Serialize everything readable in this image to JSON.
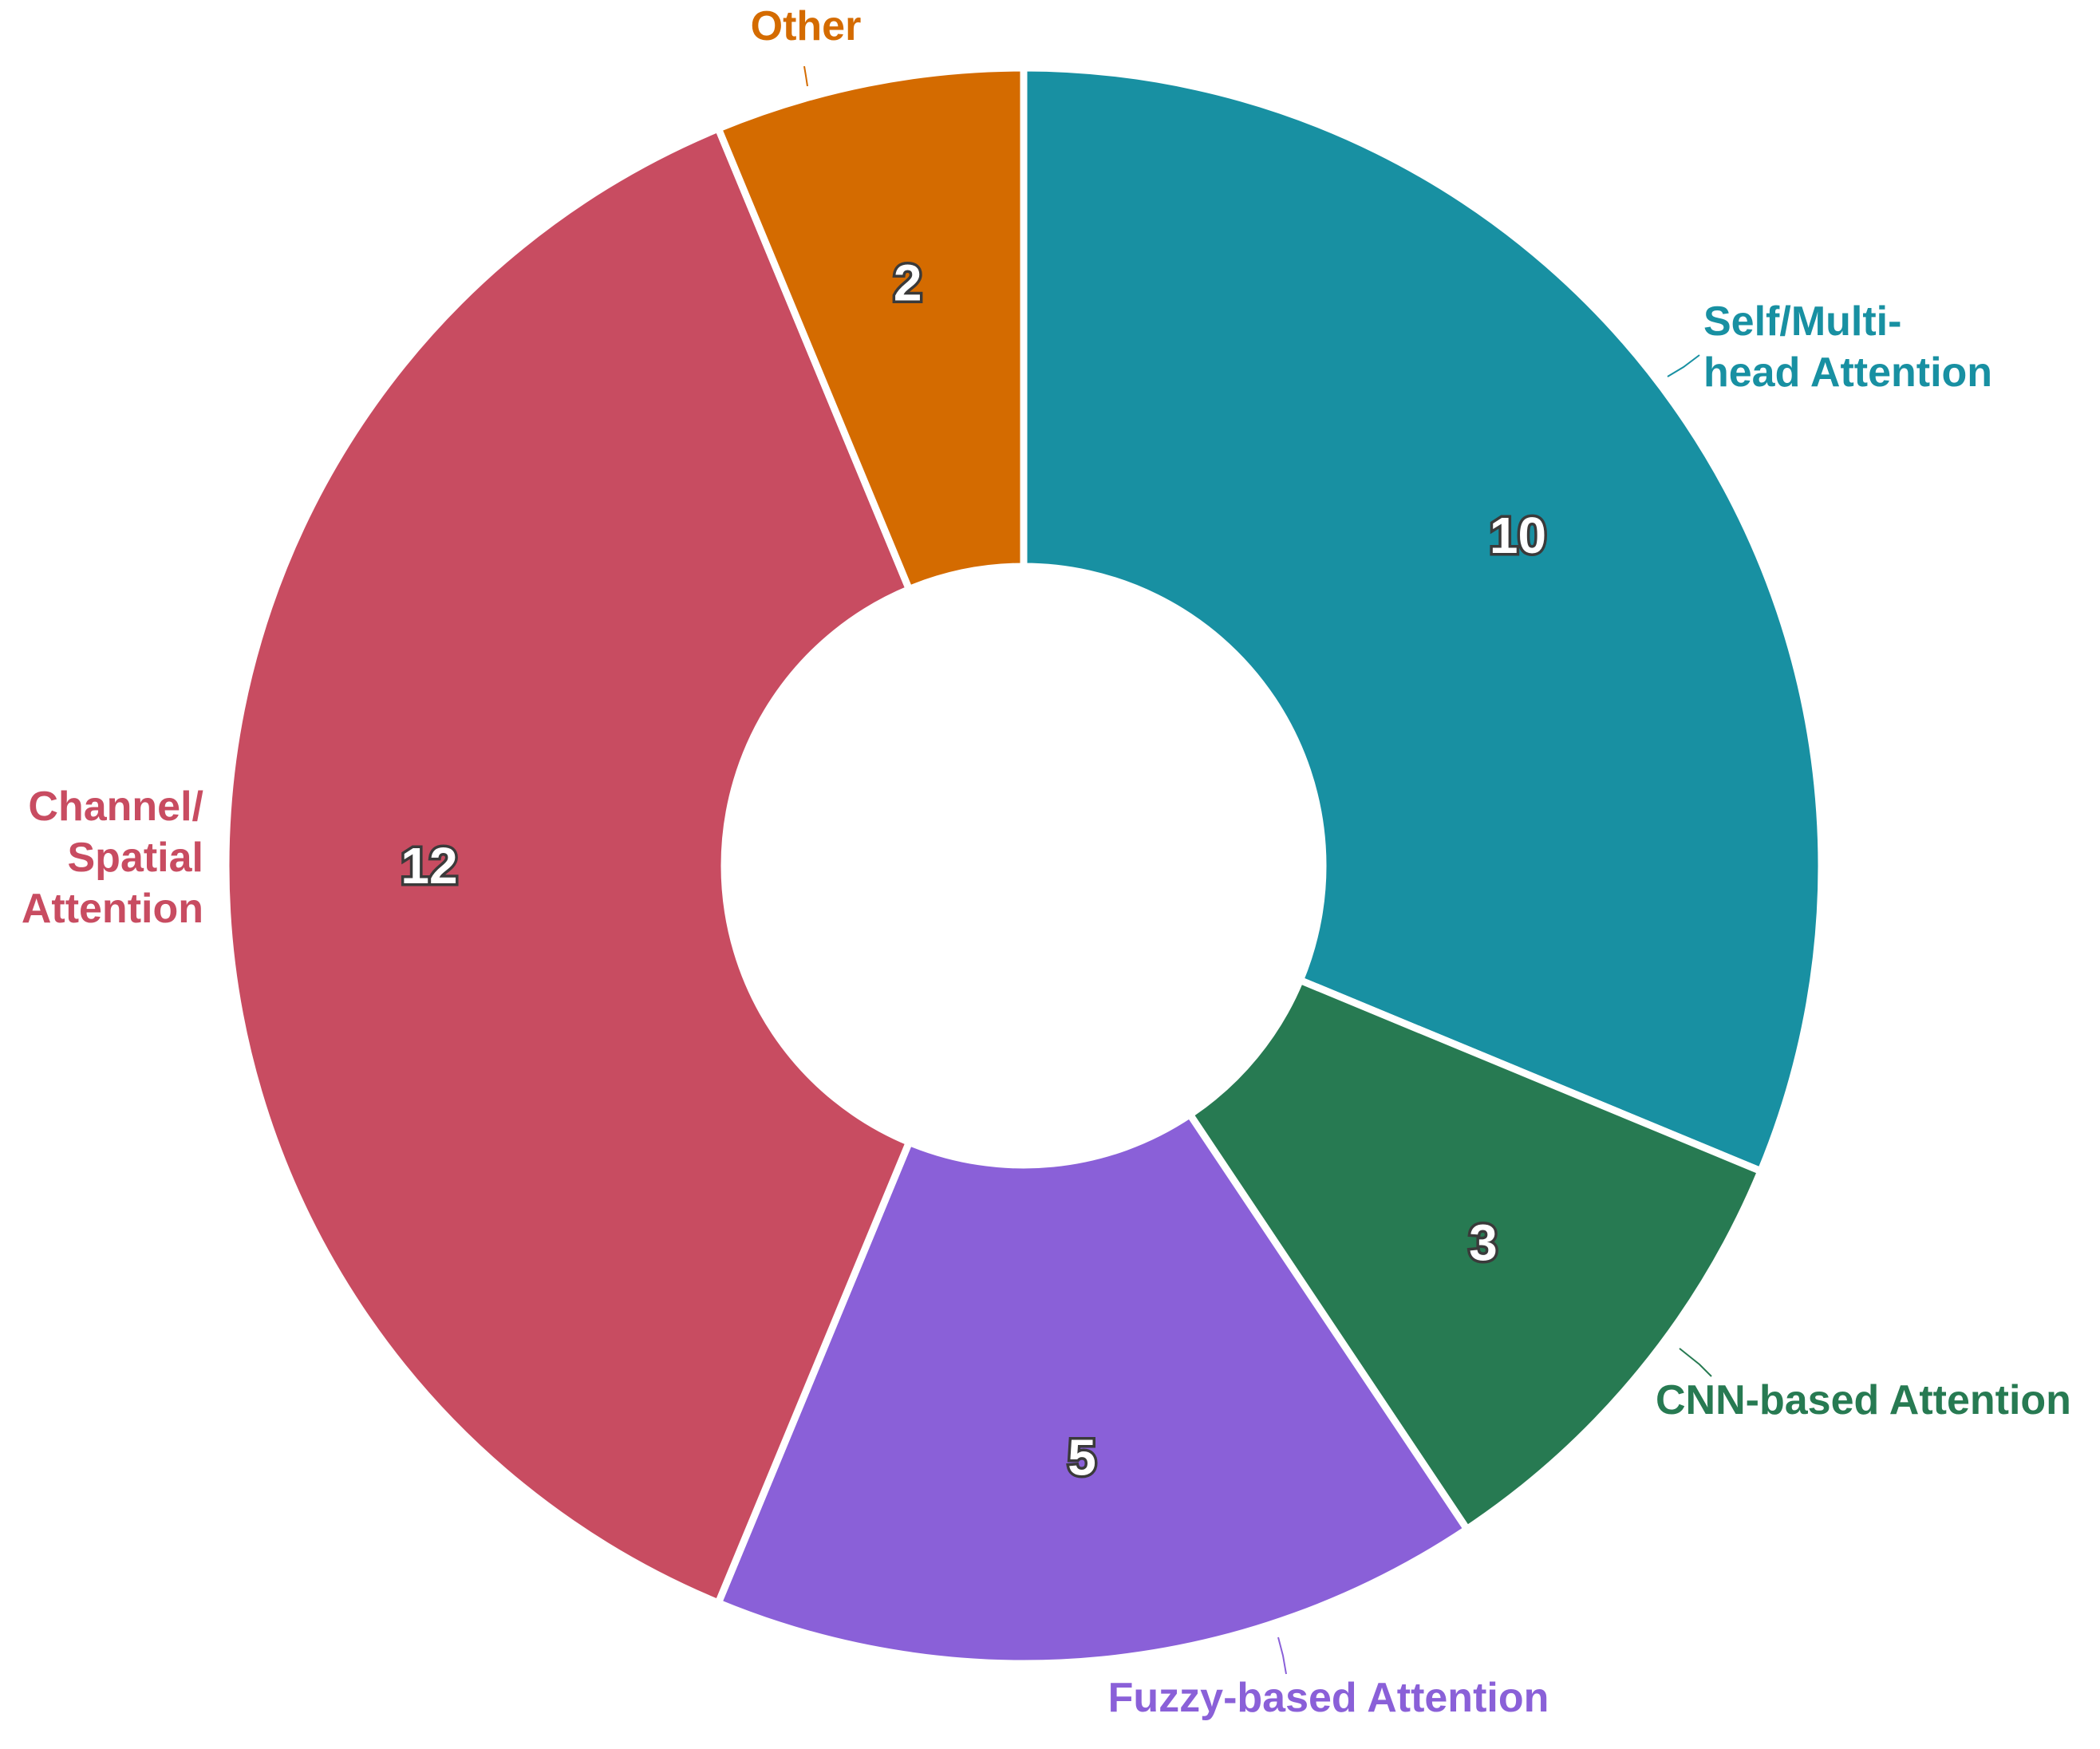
{
  "chart_data": {
    "type": "pie",
    "donut": true,
    "legend": "none",
    "categories": [
      "Self/Multi-head Attention",
      "CNN-based Attention",
      "Fuzzy-based Attention",
      "Channel/ Spatial Attention",
      "Other"
    ],
    "values": [
      10,
      3,
      5,
      12,
      2
    ],
    "colors": [
      "#1890a2",
      "#277a52",
      "#8a60d8",
      "#c84c61",
      "#d46b00"
    ],
    "value_labels": [
      "10",
      "3",
      "5",
      "12",
      "2"
    ],
    "category_labels": [
      [
        "Self/Multi-",
        "head Attention"
      ],
      [
        "CNN-based Attention"
      ],
      [
        "Fuzzy-based Attention"
      ],
      [
        "Channel/",
        "Spatial",
        "Attention"
      ],
      [
        "Other"
      ]
    ]
  }
}
